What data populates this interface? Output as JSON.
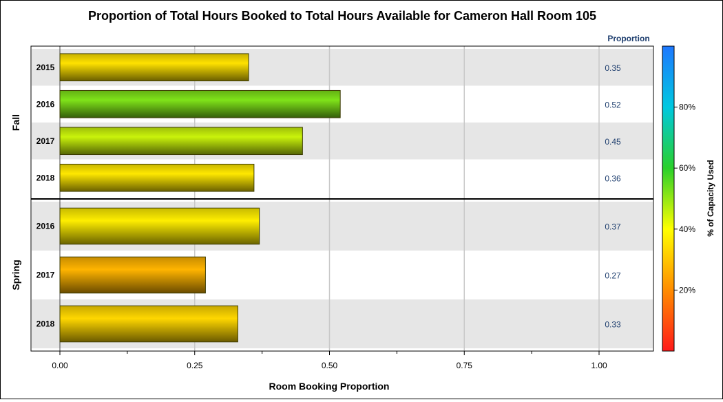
{
  "chart_data": {
    "type": "bar",
    "title": "Proportion of Total Hours Booked to Total Hours Available for Cameron Hall Room 105",
    "xlabel": "Room Booking Proportion",
    "xlim": [
      0,
      1
    ],
    "x_ticks": [
      "0.00",
      "0.25",
      "0.50",
      "0.75",
      "1.00"
    ],
    "value_column_header": "Proportion",
    "orientation": "horizontal",
    "grid": true,
    "groups": [
      {
        "name": "Fall",
        "categories": [
          "2015",
          "2016",
          "2017",
          "2018"
        ],
        "values": [
          0.35,
          0.52,
          0.45,
          0.36
        ],
        "labels": [
          "0.35",
          "0.52",
          "0.45",
          "0.36"
        ]
      },
      {
        "name": "Spring",
        "categories": [
          "2016",
          "2017",
          "2018"
        ],
        "values": [
          0.37,
          0.27,
          0.33
        ],
        "labels": [
          "0.37",
          "0.27",
          "0.33"
        ]
      }
    ],
    "colorbar": {
      "label": "% of Capacity Used",
      "ticks": [
        "20%",
        "40%",
        "60%",
        "80%"
      ],
      "tick_values": [
        0.2,
        0.4,
        0.6,
        0.8
      ],
      "range": [
        0,
        1
      ],
      "colors": [
        "#ff1a1a",
        "#ff8c00",
        "#ffff00",
        "#2ad02a",
        "#00c8e0",
        "#1e78ff"
      ],
      "placement": "right"
    }
  }
}
